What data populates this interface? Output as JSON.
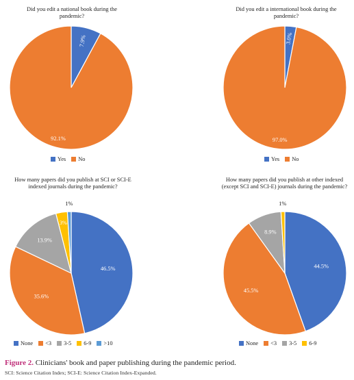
{
  "figure": {
    "label": "Figure 2.",
    "title": " Clinicians' book and paper publishing during the pandemic period.",
    "note": "SCI: Science Citation Index; SCI-E: Science Citation Index-Expanded."
  },
  "chart_data": [
    {
      "type": "pie",
      "title": "Did you edit a national book during the pandemic?",
      "categories": [
        "Yes",
        "No"
      ],
      "values": [
        7.9,
        92.1
      ],
      "labels": [
        "7.9%",
        "92.1%"
      ],
      "colors": [
        "#4472c4",
        "#ed7d31"
      ],
      "legend": "bottom"
    },
    {
      "type": "pie",
      "title": "Did you edit a international book during the pandemic?",
      "categories": [
        "Yes",
        "No"
      ],
      "values": [
        3.0,
        97.0
      ],
      "labels": [
        "3.0%",
        "97.0%"
      ],
      "colors": [
        "#4472c4",
        "#ed7d31"
      ],
      "legend": "bottom"
    },
    {
      "type": "pie",
      "title": "How many papers did you publish at SCI or SCI-E indexed journals during the pandemic?",
      "categories": [
        "None",
        "<3",
        "3-5",
        "6-9",
        ">10"
      ],
      "values": [
        46.5,
        35.6,
        13.9,
        3,
        1
      ],
      "labels": [
        "46.5%",
        "35.6%",
        "13.9%",
        "3%",
        "1%"
      ],
      "colors": [
        "#4472c4",
        "#ed7d31",
        "#a5a5a5",
        "#ffc000",
        "#5b9bd5"
      ],
      "legend": "bottom"
    },
    {
      "type": "pie",
      "title": "How many papers did you publish at other indexed (except SCI and SCI-E) journals during the pandemic?",
      "categories": [
        "None",
        "<3",
        "3-5",
        "6-9"
      ],
      "values": [
        44.5,
        45.5,
        8.9,
        1
      ],
      "labels": [
        "44.5%",
        "45.5%",
        "8.9%",
        "1%"
      ],
      "colors": [
        "#4472c4",
        "#ed7d31",
        "#a5a5a5",
        "#ffc000"
      ],
      "legend": "bottom"
    }
  ]
}
